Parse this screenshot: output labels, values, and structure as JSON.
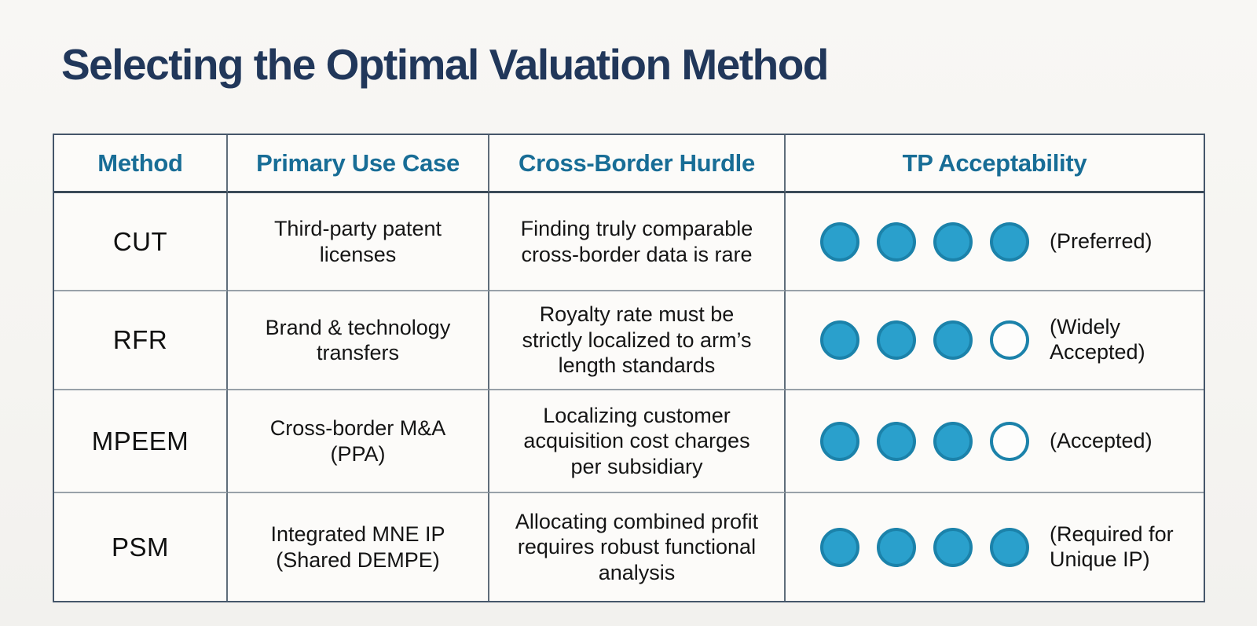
{
  "page": {
    "title": "Selecting the Optimal Valuation Method"
  },
  "colors": {
    "title_text": "#21375a",
    "header_text": "#186d96",
    "dot_fill": "#2aa0cc",
    "dot_border": "#1b82aa",
    "table_border": "#45566a",
    "background": "#f6f5f2"
  },
  "table": {
    "headers": [
      "Method",
      "Primary Use Case",
      "Cross-Border Hurdle",
      "TP Acceptability"
    ],
    "rows": [
      {
        "method": "CUT",
        "use_case": "Third-party patent licenses",
        "hurdle": "Finding truly comparable cross-border data is rare",
        "rating": 4,
        "rating_max": 4,
        "rating_label": "(Preferred)"
      },
      {
        "method": "RFR",
        "use_case": "Brand & technology transfers",
        "hurdle": "Royalty rate must be strictly localized to arm’s length standards",
        "rating": 3,
        "rating_max": 4,
        "rating_label": "(Widely Accepted)"
      },
      {
        "method": "MPEEM",
        "use_case": "Cross-border M&A (PPA)",
        "hurdle": "Localizing customer acquisition cost charges per subsidiary",
        "rating": 3,
        "rating_max": 4,
        "rating_label": "(Accepted)"
      },
      {
        "method": "PSM",
        "use_case": "Integrated MNE IP (Shared DEMPE)",
        "hurdle": "Allocating combined profit requires robust functional analysis",
        "rating": 4,
        "rating_max": 4,
        "rating_label": "(Required for Unique IP)"
      }
    ]
  }
}
